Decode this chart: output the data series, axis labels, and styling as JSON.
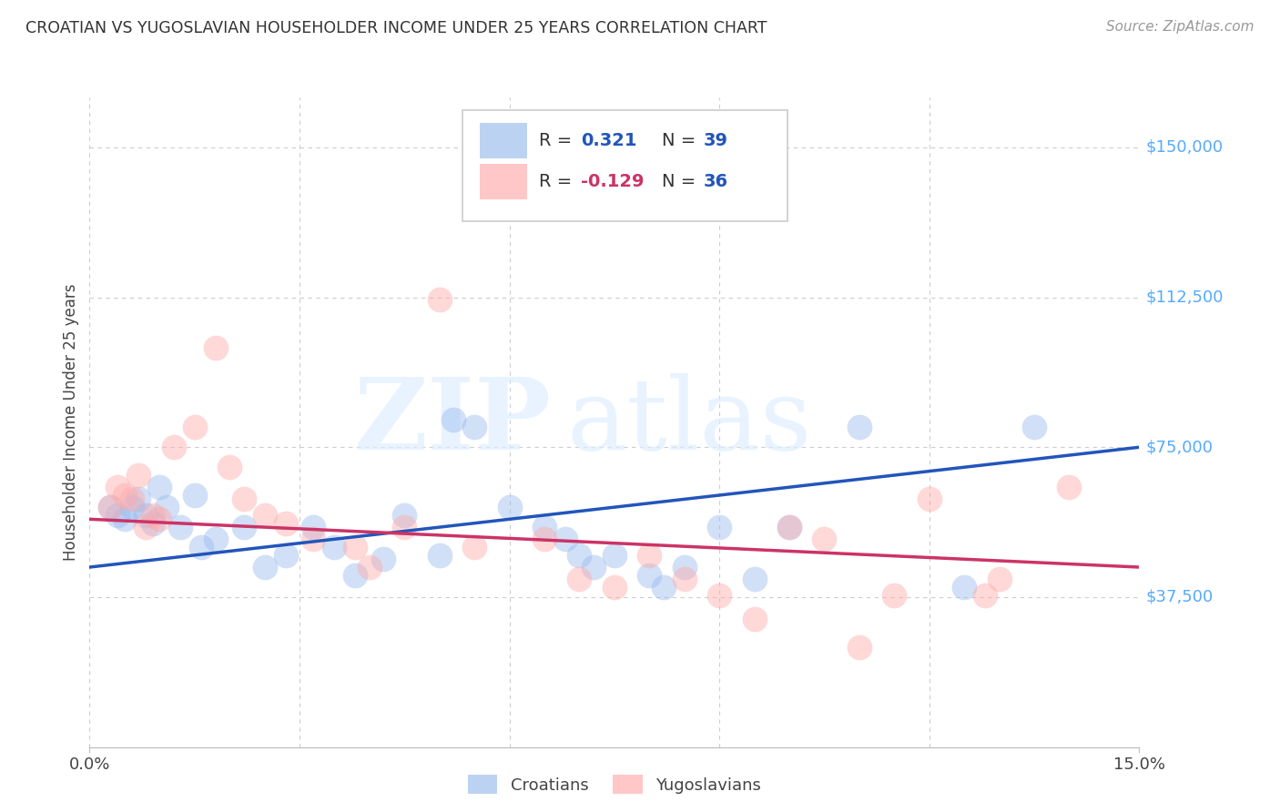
{
  "title": "CROATIAN VS YUGOSLAVIAN HOUSEHOLDER INCOME UNDER 25 YEARS CORRELATION CHART",
  "source": "Source: ZipAtlas.com",
  "ylabel": "Householder Income Under 25 years",
  "xlim": [
    0.0,
    0.15
  ],
  "ylim": [
    0,
    162500
  ],
  "yticks": [
    0,
    37500,
    75000,
    112500,
    150000
  ],
  "ytick_labels": [
    "",
    "$37,500",
    "$75,000",
    "$112,500",
    "$150,000"
  ],
  "r_croatian": "0.321",
  "n_croatian": "39",
  "r_yugoslavian": "-0.129",
  "n_yugoslavian": "36",
  "croatian_color": "#99bbee",
  "yugoslavian_color": "#ffaaaa",
  "croatian_line_color": "#2255bb",
  "yugoslavian_line_color": "#cc3366",
  "right_label_color": "#55aaff",
  "blue_line_y0": 45000,
  "blue_line_y1": 75000,
  "pink_line_y0": 57000,
  "pink_line_y1": 45000,
  "croatian_x": [
    0.003,
    0.004,
    0.005,
    0.006,
    0.007,
    0.008,
    0.009,
    0.01,
    0.011,
    0.013,
    0.015,
    0.016,
    0.018,
    0.022,
    0.025,
    0.028,
    0.032,
    0.035,
    0.038,
    0.042,
    0.045,
    0.05,
    0.052,
    0.055,
    0.06,
    0.065,
    0.068,
    0.07,
    0.072,
    0.075,
    0.08,
    0.082,
    0.085,
    0.09,
    0.095,
    0.1,
    0.11,
    0.125,
    0.135
  ],
  "croatian_y": [
    60000,
    58000,
    57000,
    60000,
    62000,
    58000,
    56000,
    65000,
    60000,
    55000,
    63000,
    50000,
    52000,
    55000,
    45000,
    48000,
    55000,
    50000,
    43000,
    47000,
    58000,
    48000,
    82000,
    80000,
    60000,
    55000,
    52000,
    48000,
    45000,
    48000,
    43000,
    40000,
    45000,
    55000,
    42000,
    55000,
    80000,
    40000,
    80000
  ],
  "yugoslavian_x": [
    0.003,
    0.004,
    0.005,
    0.006,
    0.007,
    0.008,
    0.009,
    0.01,
    0.012,
    0.015,
    0.018,
    0.02,
    0.022,
    0.025,
    0.028,
    0.032,
    0.038,
    0.04,
    0.045,
    0.05,
    0.055,
    0.065,
    0.07,
    0.075,
    0.08,
    0.085,
    0.09,
    0.095,
    0.1,
    0.105,
    0.11,
    0.115,
    0.12,
    0.128,
    0.13,
    0.14
  ],
  "yugoslavian_y": [
    60000,
    65000,
    63000,
    62000,
    68000,
    55000,
    58000,
    57000,
    75000,
    80000,
    100000,
    70000,
    62000,
    58000,
    56000,
    52000,
    50000,
    45000,
    55000,
    112000,
    50000,
    52000,
    42000,
    40000,
    48000,
    42000,
    38000,
    32000,
    55000,
    52000,
    25000,
    38000,
    62000,
    38000,
    42000,
    65000
  ],
  "watermark_zip": "ZIP",
  "watermark_atlas": "atlas",
  "background_color": "#ffffff",
  "grid_color": "#cccccc"
}
